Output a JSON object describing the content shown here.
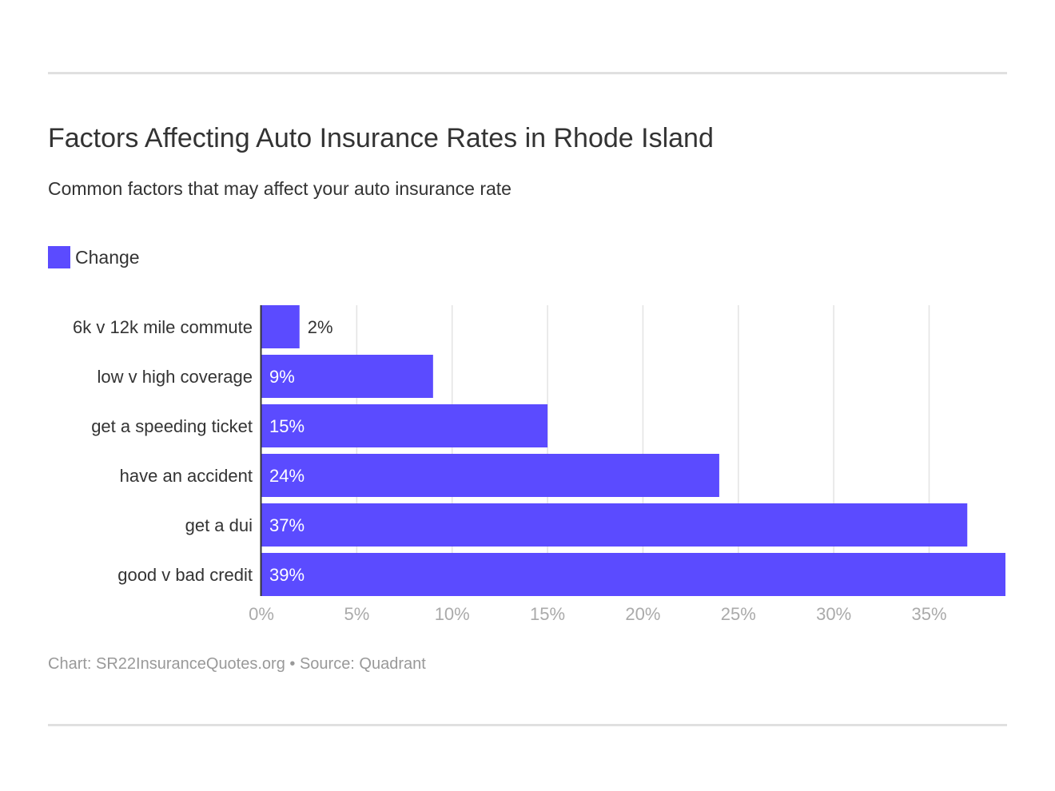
{
  "title": "Factors Affecting Auto Insurance Rates in Rhode Island",
  "subtitle": "Common factors that may affect your auto insurance rate",
  "footer": "Chart: SR22InsuranceQuotes.org • Source: Quadrant",
  "colors": {
    "bar": "#5b4bff",
    "grid": "#e3e3e3",
    "axis": "#333333",
    "tick": "#aaaaaa"
  },
  "chart_data": {
    "type": "bar",
    "orientation": "horizontal",
    "title": "Factors Affecting Auto Insurance Rates in Rhode Island",
    "subtitle": "Common factors that may affect your auto insurance rate",
    "categories": [
      "6k v 12k mile commute",
      "low v high coverage",
      "get a speeding ticket",
      "have an accident",
      "get a dui",
      "good v bad credit"
    ],
    "series": [
      {
        "name": "Change",
        "values": [
          2,
          9,
          15,
          24,
          37,
          39
        ]
      }
    ],
    "data_labels": [
      "2%",
      "9%",
      "15%",
      "24%",
      "37%",
      "39%"
    ],
    "xlim": [
      0,
      39
    ],
    "xticks": [
      0,
      5,
      10,
      15,
      20,
      25,
      30,
      35
    ],
    "xtick_labels": [
      "0%",
      "5%",
      "10%",
      "15%",
      "20%",
      "25%",
      "30%",
      "35%"
    ],
    "grid": "vertical",
    "legend": "top-left"
  }
}
